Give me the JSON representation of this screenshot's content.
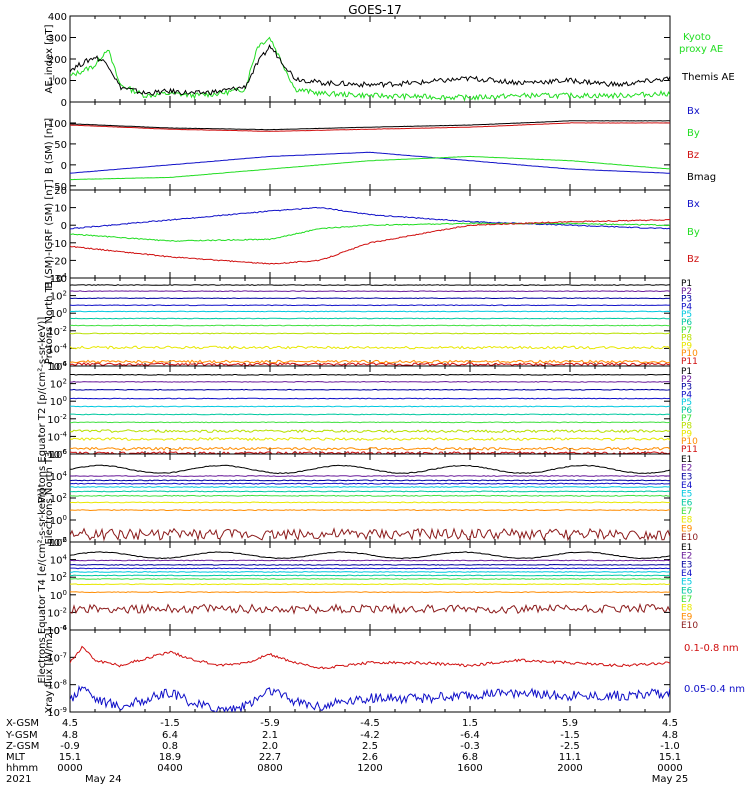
{
  "title": "GOES-17",
  "colors": {
    "black": "#000000",
    "green": "#22dd22",
    "blue": "#1010c8",
    "red": "#d01010",
    "dark_red": "#8b1a1a",
    "orange": "#ff8c00",
    "yellow": "#e8e800",
    "yellow_green": "#b8e000",
    "cyan": "#00c8e0",
    "teal": "#00c8a0",
    "lime": "#40e040",
    "navy": "#0000a0",
    "purple": "#6a1b9a",
    "magenta": "#c040c0"
  },
  "chart_data": [
    {
      "type": "line",
      "ylabel": "AE_index [nT]",
      "ylim": [
        0,
        400
      ],
      "yticks": [
        "400",
        "300",
        "200",
        "100",
        "0"
      ],
      "x_range_hours": [
        0,
        24
      ],
      "series": [
        {
          "name": "Kyoto proxy AE",
          "color": "green",
          "x": [
            0,
            1,
            1.5,
            2,
            3,
            4,
            5,
            6,
            7,
            7.5,
            8,
            9,
            10,
            12,
            14,
            16,
            18,
            20,
            22,
            24
          ],
          "values": [
            120,
            170,
            250,
            80,
            30,
            40,
            30,
            40,
            60,
            260,
            300,
            60,
            40,
            30,
            25,
            20,
            30,
            30,
            30,
            40
          ]
        },
        {
          "name": "Themis AE",
          "color": "black",
          "x": [
            0,
            1,
            1.5,
            2,
            3,
            4,
            5,
            6,
            7,
            7.5,
            8,
            9,
            10,
            12,
            14,
            16,
            18,
            20,
            22,
            24
          ],
          "values": [
            150,
            210,
            180,
            70,
            40,
            50,
            40,
            50,
            70,
            180,
            260,
            110,
            90,
            80,
            90,
            110,
            90,
            100,
            80,
            110
          ]
        }
      ],
      "legend": [
        "Kyoto",
        "proxy AE",
        "Themis AE"
      ]
    },
    {
      "type": "line",
      "ylabel": "B (SM) [nT]",
      "ylim": [
        -60,
        150
      ],
      "yticks": [
        "100",
        "50",
        "0",
        "-50"
      ],
      "series": [
        {
          "name": "Bx",
          "color": "blue",
          "x": [
            0,
            4,
            8,
            12,
            16,
            20,
            24
          ],
          "values": [
            -20,
            0,
            20,
            30,
            10,
            -10,
            -20
          ]
        },
        {
          "name": "By",
          "color": "green",
          "x": [
            0,
            4,
            8,
            12,
            16,
            20,
            24
          ],
          "values": [
            -35,
            -30,
            -10,
            10,
            20,
            10,
            -10
          ]
        },
        {
          "name": "Bz",
          "color": "red",
          "x": [
            0,
            4,
            8,
            12,
            16,
            20,
            24
          ],
          "values": [
            95,
            85,
            80,
            85,
            90,
            100,
            100
          ]
        },
        {
          "name": "Bmag",
          "color": "black",
          "x": [
            0,
            4,
            8,
            12,
            16,
            20,
            24
          ],
          "values": [
            98,
            88,
            84,
            90,
            95,
            105,
            105
          ]
        }
      ]
    },
    {
      "type": "line",
      "ylabel": "B (SM)-IGRF (SM) [nT]",
      "ylim": [
        -30,
        20
      ],
      "yticks": [
        "20",
        "10",
        "0",
        "-10",
        "-20",
        "-30"
      ],
      "series": [
        {
          "name": "Bx",
          "color": "blue",
          "x": [
            0,
            4,
            8,
            10,
            12,
            16,
            20,
            24
          ],
          "values": [
            -2,
            3,
            8,
            10,
            6,
            2,
            0,
            -2
          ]
        },
        {
          "name": "By",
          "color": "green",
          "x": [
            0,
            4,
            8,
            10,
            12,
            16,
            20,
            24
          ],
          "values": [
            -5,
            -9,
            -8,
            -2,
            0,
            1,
            1,
            0
          ]
        },
        {
          "name": "Bz",
          "color": "red",
          "x": [
            0,
            4,
            8,
            10,
            12,
            16,
            20,
            24
          ],
          "values": [
            -12,
            -18,
            -22,
            -20,
            -10,
            0,
            2,
            3
          ]
        }
      ]
    },
    {
      "type": "line",
      "ylabel": "Protons North T1",
      "ylim": [
        -6,
        4
      ],
      "yscale": "log",
      "yticks": [
        "10^4",
        "10^2",
        "10^0",
        "10^-2",
        "10^-4",
        "10^-6"
      ],
      "series_log10": [
        {
          "name": "P1",
          "color": "black",
          "value": 3.2
        },
        {
          "name": "P2",
          "color": "purple",
          "value": 2.5
        },
        {
          "name": "P3",
          "color": "navy",
          "value": 1.7
        },
        {
          "name": "P4",
          "color": "blue",
          "value": 0.9
        },
        {
          "name": "P5",
          "color": "cyan",
          "value": 0.2
        },
        {
          "name": "P6",
          "color": "teal",
          "value": -0.6
        },
        {
          "name": "P7",
          "color": "lime",
          "value": -1.4
        },
        {
          "name": "P8",
          "color": "yellow_green",
          "value": -2.3
        },
        {
          "name": "P9",
          "color": "yellow",
          "value": -3.9
        },
        {
          "name": "P10",
          "color": "orange",
          "value": -5.5
        },
        {
          "name": "P11",
          "color": "red",
          "value": -5.8
        }
      ]
    },
    {
      "type": "line",
      "ylabel": "Protons Equator T2 [p/(cm²-s-sr-keV)]",
      "ylim": [
        -6,
        4
      ],
      "yscale": "log",
      "yticks": [
        "10^4",
        "10^2",
        "10^0",
        "10^-2",
        "10^-4",
        "10^-6"
      ],
      "series_log10": [
        {
          "name": "P1",
          "color": "black",
          "value": 3.0
        },
        {
          "name": "P2",
          "color": "purple",
          "value": 2.2
        },
        {
          "name": "P3",
          "color": "navy",
          "value": 1.3
        },
        {
          "name": "P4",
          "color": "blue",
          "value": 0.3
        },
        {
          "name": "P5",
          "color": "cyan",
          "value": -0.6
        },
        {
          "name": "P6",
          "color": "teal",
          "value": -1.5
        },
        {
          "name": "P7",
          "color": "lime",
          "value": -2.4
        },
        {
          "name": "P8",
          "color": "yellow_green",
          "value": -3.4
        },
        {
          "name": "P9",
          "color": "yellow",
          "value": -4.3
        },
        {
          "name": "P10",
          "color": "orange",
          "value": -5.4
        },
        {
          "name": "P11",
          "color": "red",
          "value": -5.9
        }
      ]
    },
    {
      "type": "line",
      "ylabel": "Electrons North T3",
      "ylim": [
        -2,
        6
      ],
      "yscale": "log",
      "yticks": [
        "10^6",
        "10^4",
        "10^2",
        "10^0",
        "10^-2"
      ],
      "series_log10": [
        {
          "name": "E1",
          "color": "black",
          "value": 4.6
        },
        {
          "name": "E2",
          "color": "purple",
          "value": 4.0
        },
        {
          "name": "E3",
          "color": "navy",
          "value": 3.6
        },
        {
          "name": "E4",
          "color": "blue",
          "value": 3.3
        },
        {
          "name": "E5",
          "color": "cyan",
          "value": 3.0
        },
        {
          "name": "E6",
          "color": "teal",
          "value": 2.6
        },
        {
          "name": "E7",
          "color": "lime",
          "value": 2.2
        },
        {
          "name": "E8",
          "color": "yellow",
          "value": 1.6
        },
        {
          "name": "E9",
          "color": "orange",
          "value": 0.9
        },
        {
          "name": "E10",
          "color": "dark_red",
          "value": -1.3
        }
      ]
    },
    {
      "type": "line",
      "ylabel": "Electrons Equator T4 [e/(cm²-s-sr-keV)]",
      "ylim": [
        -4,
        6
      ],
      "yscale": "log",
      "yticks": [
        "10^6",
        "10^4",
        "10^2",
        "10^0",
        "10^-2",
        "10^-4"
      ],
      "series_log10": [
        {
          "name": "E1",
          "color": "black",
          "value": 4.5
        },
        {
          "name": "E2",
          "color": "purple",
          "value": 3.9
        },
        {
          "name": "E3",
          "color": "navy",
          "value": 3.4
        },
        {
          "name": "E4",
          "color": "blue",
          "value": 3.0
        },
        {
          "name": "E5",
          "color": "cyan",
          "value": 2.6
        },
        {
          "name": "E6",
          "color": "teal",
          "value": 2.2
        },
        {
          "name": "E7",
          "color": "lime",
          "value": 1.8
        },
        {
          "name": "E8",
          "color": "yellow",
          "value": 1.2
        },
        {
          "name": "E9",
          "color": "orange",
          "value": 0.3
        },
        {
          "name": "E10",
          "color": "dark_red",
          "value": -1.6
        }
      ]
    },
    {
      "type": "line",
      "ylabel": "Xray flux [W/m2]",
      "ylim": [
        -9,
        -6
      ],
      "yscale": "log",
      "yticks": [
        "10^-6",
        "10^-7",
        "10^-8",
        "10^-9"
      ],
      "series": [
        {
          "name": "0.1-0.8 nm",
          "color": "red",
          "x": [
            0,
            0.5,
            1,
            2,
            4,
            5,
            6,
            7,
            8,
            9,
            10,
            11,
            12,
            14,
            16,
            18,
            20,
            22,
            24
          ],
          "values_log10": [
            -7.2,
            -6.6,
            -7.1,
            -7.3,
            -6.8,
            -7.1,
            -7.3,
            -7.2,
            -6.9,
            -7.2,
            -7.4,
            -7.3,
            -7.2,
            -7.2,
            -7.3,
            -7.1,
            -7.2,
            -7.3,
            -7.2
          ]
        },
        {
          "name": "0.05-0.4 nm",
          "color": "blue",
          "x": [
            0,
            0.5,
            1,
            2,
            4,
            5,
            6,
            7,
            8,
            9,
            10,
            11,
            12,
            14,
            16,
            18,
            20,
            22,
            24
          ],
          "values_log10": [
            -8.6,
            -8.0,
            -8.5,
            -8.8,
            -8.3,
            -8.7,
            -8.9,
            -8.8,
            -8.2,
            -8.6,
            -8.8,
            -8.6,
            -8.5,
            -8.5,
            -8.4,
            -8.3,
            -8.4,
            -8.4,
            -8.3
          ]
        }
      ]
    }
  ],
  "orbit_table": {
    "row_labels": [
      "X-GSM",
      "Y-GSM",
      "Z-GSM",
      "MLT",
      "hhmm",
      "2021"
    ],
    "columns": [
      [
        "4.5",
        "4.8",
        "-0.9",
        "15.1",
        "0000",
        "May 24"
      ],
      [
        "-1.5",
        "6.4",
        "0.8",
        "18.9",
        "0400",
        ""
      ],
      [
        "-5.9",
        "2.1",
        "2.0",
        "22.7",
        "0800",
        ""
      ],
      [
        "-4.5",
        "-4.2",
        "2.5",
        "2.6",
        "1200",
        ""
      ],
      [
        "1.5",
        "-6.4",
        "-0.3",
        "6.8",
        "1600",
        ""
      ],
      [
        "5.9",
        "-1.5",
        "-2.5",
        "11.1",
        "2000",
        ""
      ],
      [
        "4.5",
        "4.8",
        "-1.0",
        "15.1",
        "0000",
        "May 25"
      ]
    ]
  }
}
